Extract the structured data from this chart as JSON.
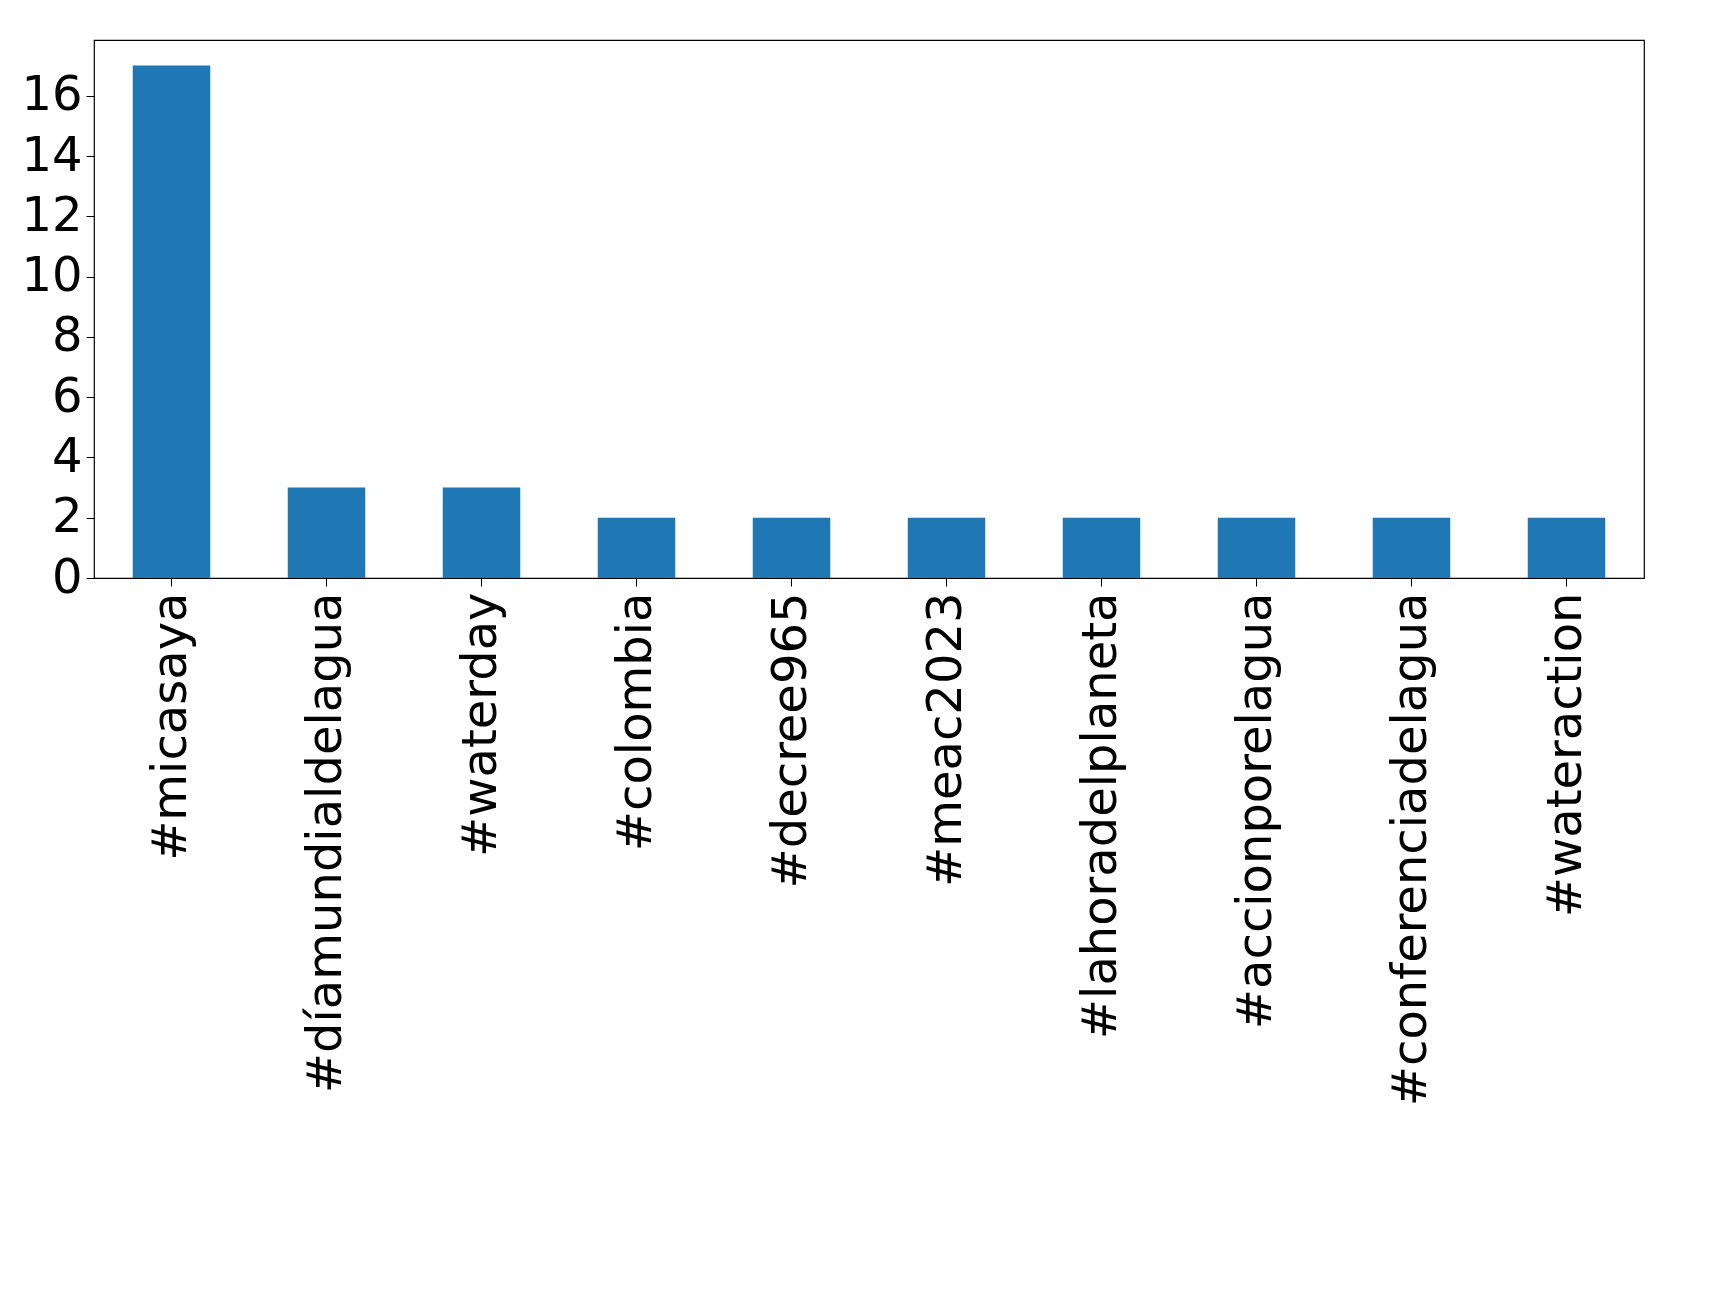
{
  "chart_data": {
    "type": "bar",
    "categories": [
      "#micasaya",
      "#díamundialdelagua",
      "#waterday",
      "#colombia",
      "#decree965",
      "#meac2023",
      "#lahoradelplaneta",
      "#accionporelagua",
      "#conferenciadelagua",
      "#wateraction"
    ],
    "values": [
      17,
      3,
      3,
      2,
      2,
      2,
      2,
      2,
      2,
      2
    ],
    "color": "#1f77b4",
    "ylim": [
      0,
      17.85
    ],
    "yticks": [
      0,
      2,
      4,
      6,
      8,
      10,
      12,
      14,
      16
    ],
    "grid": false
  }
}
